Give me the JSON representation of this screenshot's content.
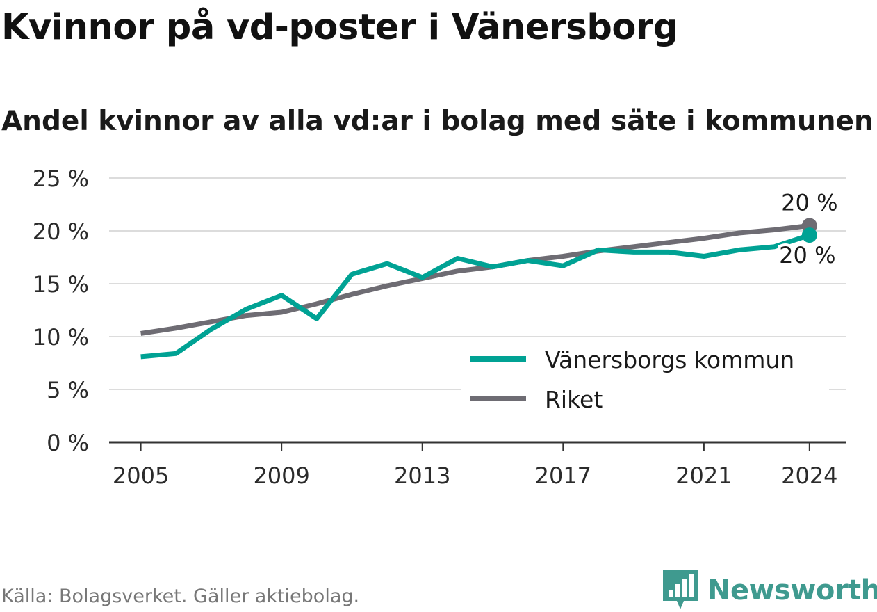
{
  "header": {
    "title": "Kvinnor på vd-poster i Vänersborg",
    "subtitle": "Andel kvinnor av alla vd:ar i bolag med säte i kommunen"
  },
  "footer": {
    "source": "Källa: Bolagsverket. Gäller aktiebolag.",
    "brand": "Newsworthy",
    "brand_icon": "newsworthy-logo-icon"
  },
  "colors": {
    "kommun": "#00a294",
    "riket": "#6e6c73",
    "grid": "#dcdcdc",
    "axis": "#333333",
    "brand": "#3f9a8f"
  },
  "chart_data": {
    "type": "line",
    "title": "Kvinnor på vd-poster i Vänersborg",
    "subtitle": "Andel kvinnor av alla vd:ar i bolag med säte i kommunen",
    "xlabel": "",
    "ylabel": "",
    "x": [
      2005,
      2006,
      2007,
      2008,
      2009,
      2010,
      2011,
      2012,
      2013,
      2014,
      2015,
      2016,
      2017,
      2018,
      2019,
      2020,
      2021,
      2022,
      2023,
      2024
    ],
    "x_ticks": [
      2005,
      2009,
      2013,
      2017,
      2021,
      2024
    ],
    "ylim": [
      0,
      25
    ],
    "y_ticks": [
      0,
      5,
      10,
      15,
      20,
      25
    ],
    "y_tick_labels": [
      "0 %",
      "5 %",
      "10 %",
      "15 %",
      "20 %",
      "25 %"
    ],
    "grid": true,
    "legend_position": "bottom-right",
    "series": [
      {
        "name": "Vänersborgs kommun",
        "color": "#00a294",
        "values": [
          8.1,
          8.4,
          10.7,
          12.6,
          13.9,
          11.7,
          15.9,
          16.9,
          15.6,
          17.4,
          16.6,
          17.2,
          16.7,
          18.2,
          18.0,
          18.0,
          17.6,
          18.2,
          18.5,
          19.6
        ],
        "end_label": "20 %"
      },
      {
        "name": "Riket",
        "color": "#6e6c73",
        "values": [
          10.3,
          10.8,
          11.4,
          12.0,
          12.3,
          13.1,
          14.0,
          14.8,
          15.5,
          16.2,
          16.6,
          17.2,
          17.6,
          18.1,
          18.5,
          18.9,
          19.3,
          19.8,
          20.1,
          20.5
        ],
        "end_label": "20 %"
      }
    ]
  }
}
